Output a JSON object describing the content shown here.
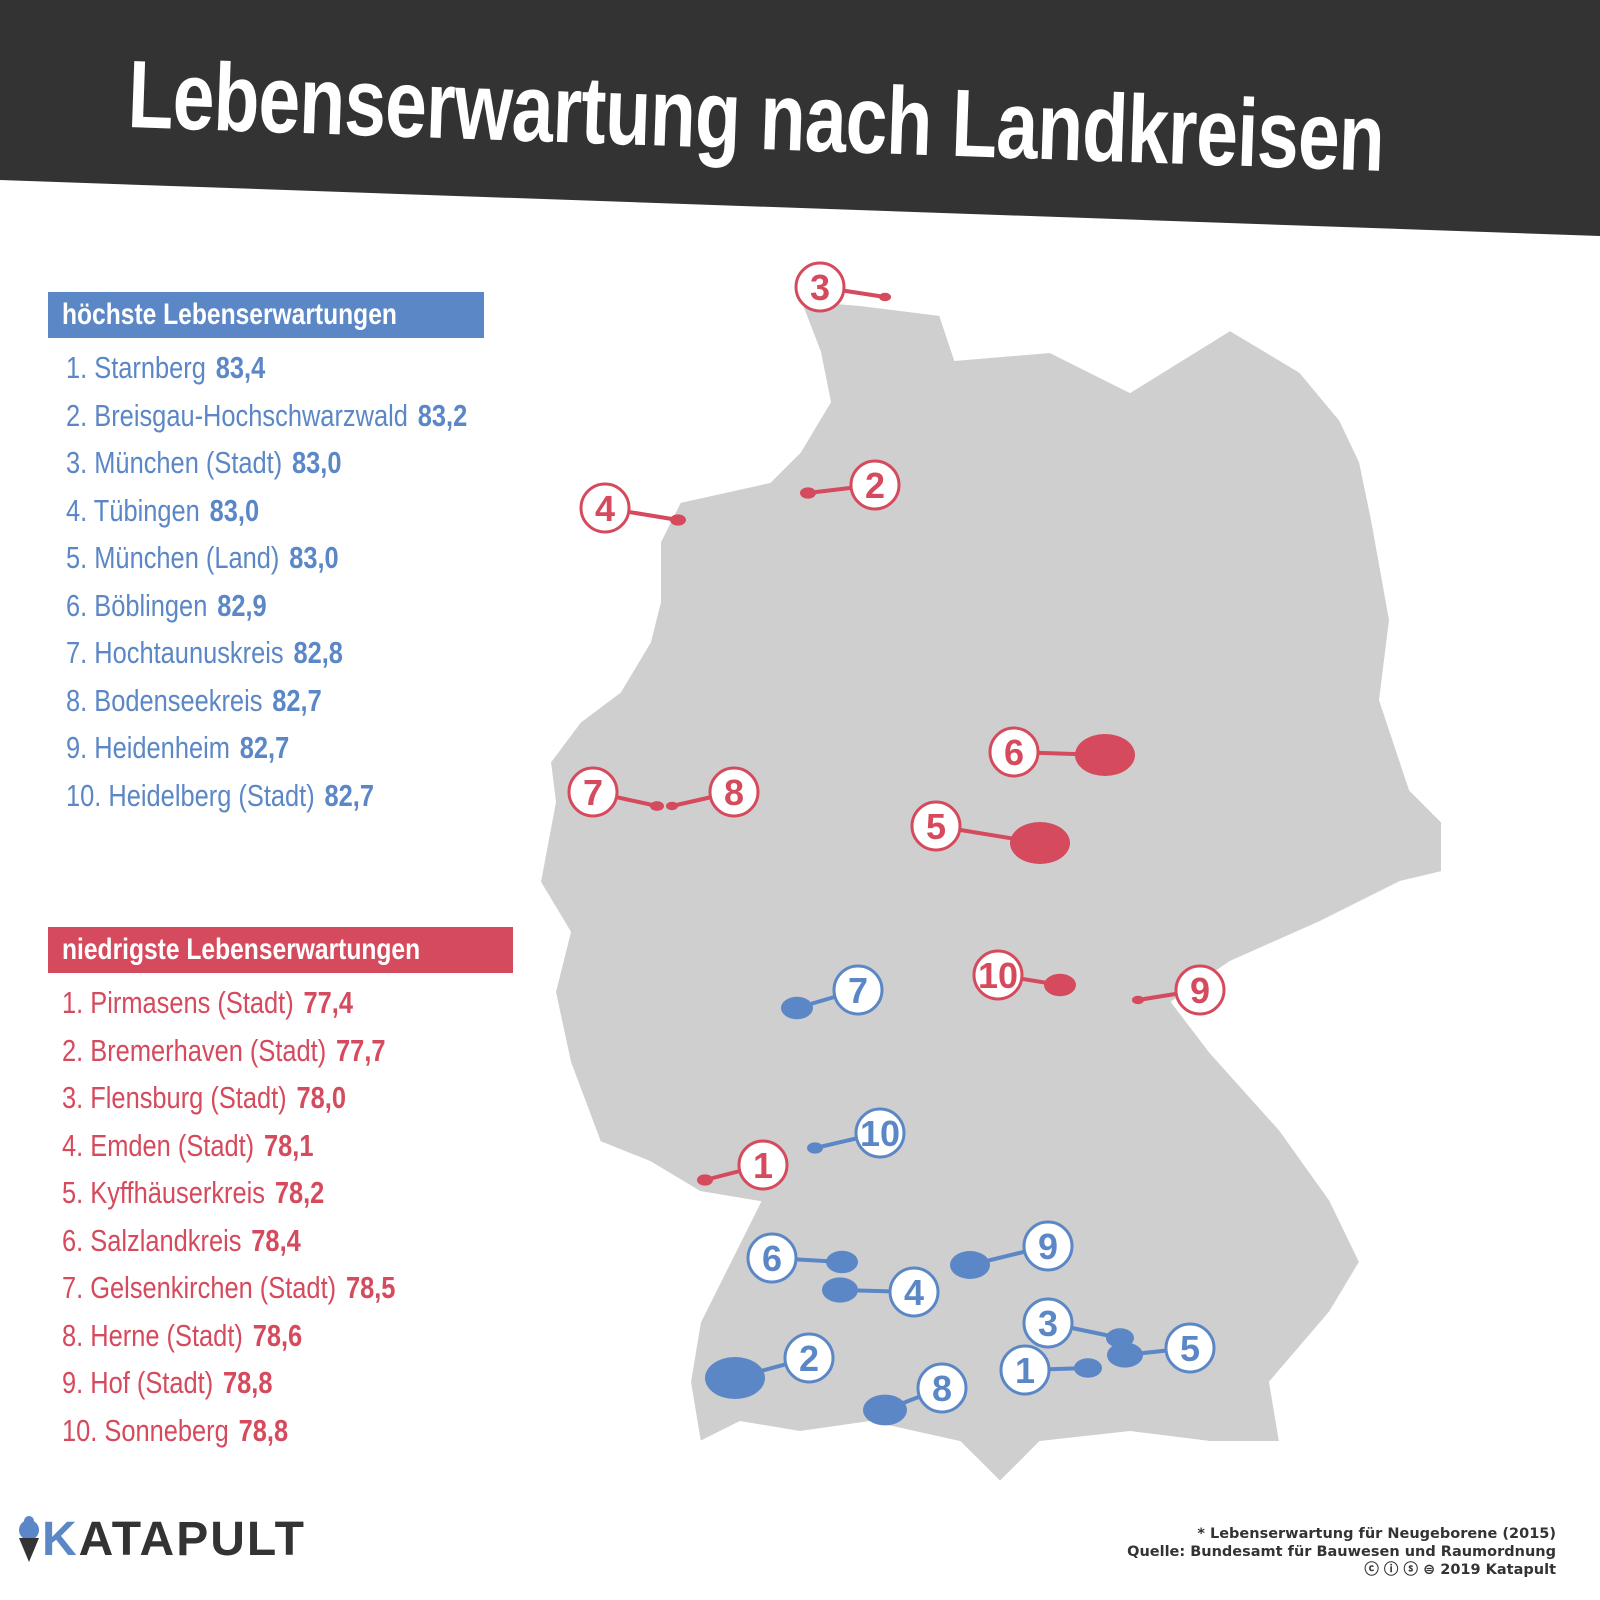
{
  "title": "Lebenserwartung nach Landkreisen",
  "colors": {
    "high": "#5b87c6",
    "low": "#d54a5d",
    "band": "#333333",
    "land": "#cfcfcf"
  },
  "highest": {
    "header": "höchste Lebenserwartungen",
    "items": [
      {
        "label": "1. Starnberg",
        "value": "83,4"
      },
      {
        "label": "2. Breisgau-Hochschwarzwald",
        "value": "83,2"
      },
      {
        "label": "3. München (Stadt)",
        "value": "83,0"
      },
      {
        "label": "4. Tübingen",
        "value": "83,0"
      },
      {
        "label": "5. München (Land)",
        "value": "83,0"
      },
      {
        "label": "6. Böblingen",
        "value": "82,9"
      },
      {
        "label": "7. Hochtaunuskreis",
        "value": "82,8"
      },
      {
        "label": "8. Bodenseekreis",
        "value": "82,7"
      },
      {
        "label": "9.  Heidenheim",
        "value": "82,7"
      },
      {
        "label": "10. Heidelberg (Stadt)",
        "value": "82,7"
      }
    ]
  },
  "lowest": {
    "header": "niedrigste Lebenserwartungen",
    "items": [
      {
        "label": "1. Pirmasens (Stadt)",
        "value": "77,4"
      },
      {
        "label": "2. Bremerhaven (Stadt)",
        "value": "77,7"
      },
      {
        "label": "3. Flensburg (Stadt)",
        "value": "78,0"
      },
      {
        "label": "4. Emden (Stadt)",
        "value": "78,1"
      },
      {
        "label": "5. Kyffhäuserkreis",
        "value": "78,2"
      },
      {
        "label": "6. Salzlandkreis",
        "value": "78,4"
      },
      {
        "label": "7. Gelsenkirchen (Stadt)",
        "value": "78,5"
      },
      {
        "label": "8. Herne (Stadt)",
        "value": "78,6"
      },
      {
        "label": "9. Hof (Stadt)",
        "value": "78,8"
      },
      {
        "label": "10. Sonneberg",
        "value": "78,8"
      }
    ]
  },
  "map_markers": {
    "high": [
      "1",
      "2",
      "3",
      "4",
      "5",
      "6",
      "7",
      "8",
      "9",
      "10"
    ],
    "low": [
      "1",
      "2",
      "3",
      "4",
      "5",
      "6",
      "7",
      "8",
      "9",
      "10"
    ]
  },
  "logo": {
    "k": "K",
    "rest": "ATAPULT"
  },
  "footer": {
    "note": "* Lebenserwartung für Neugeborene (2015)",
    "source": "Quelle: Bundesamt für Bauwesen und Raumordnung",
    "license_icons": [
      "cc-icon",
      "by-icon",
      "nc-icon",
      "nd-icon"
    ],
    "copyright": "2019 Katapult"
  }
}
